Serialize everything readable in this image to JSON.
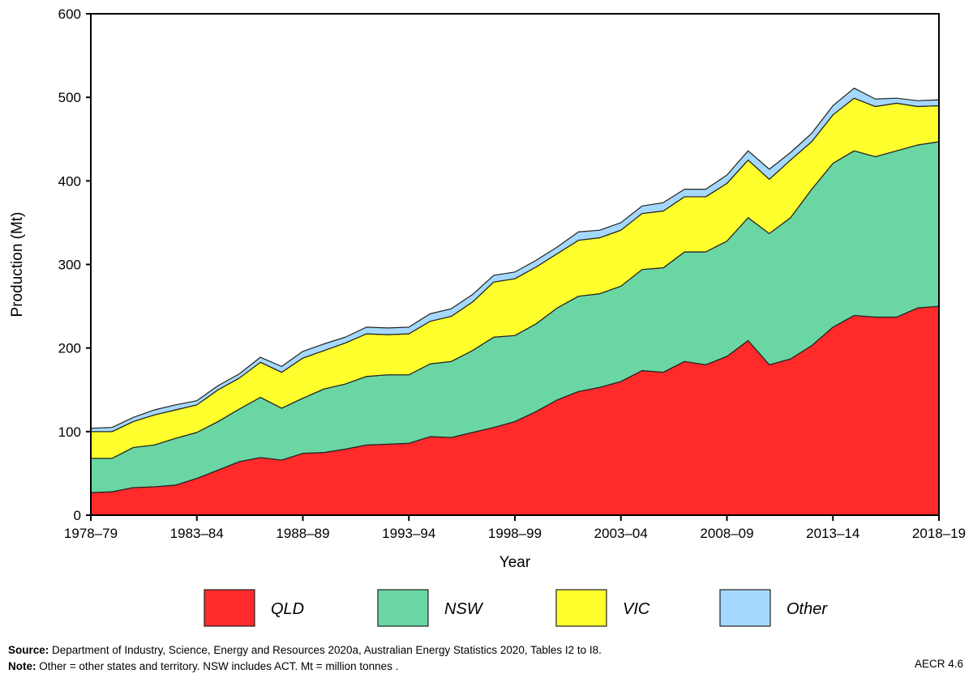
{
  "chart_data": {
    "type": "area",
    "stacked": true,
    "xlabel": "Year",
    "ylabel": "Production (Mt)",
    "ylim": [
      0,
      600
    ],
    "yticks": [
      0,
      100,
      200,
      300,
      400,
      500,
      600
    ],
    "x": [
      "1978–79",
      "1979–80",
      "1980–81",
      "1981–82",
      "1982–83",
      "1983–84",
      "1984–85",
      "1985–86",
      "1986–87",
      "1987–88",
      "1988–89",
      "1989–90",
      "1990–91",
      "1991–92",
      "1992–93",
      "1993–94",
      "1994–95",
      "1995–96",
      "1996–97",
      "1997–98",
      "1998–99",
      "1999–00",
      "2000–01",
      "2001–02",
      "2002–03",
      "2003–04",
      "2004–05",
      "2005–06",
      "2006–07",
      "2007–08",
      "2008–09",
      "2009–10",
      "2010–11",
      "2011–12",
      "2012–13",
      "2013–14",
      "2014–15",
      "2015–16",
      "2016–17",
      "2017–18",
      "2018–19"
    ],
    "xtick_labels": [
      "1978–79",
      "1983–84",
      "1988–89",
      "1993–94",
      "1998–99",
      "2003–04",
      "2008–09",
      "2013–14",
      "2018–19"
    ],
    "grid": false,
    "legend_placement": "bottom",
    "series": [
      {
        "name": "QLD",
        "color": "#ff2a2a",
        "values": [
          27,
          28,
          33,
          34,
          36,
          44,
          54,
          64,
          69,
          66,
          74,
          75,
          79,
          84,
          85,
          86,
          94,
          93,
          99,
          105,
          112,
          124,
          138,
          148,
          153,
          160,
          173,
          171,
          184,
          180,
          190,
          209,
          180,
          187,
          203,
          225,
          239,
          237,
          237,
          248,
          250
        ]
      },
      {
        "name": "NSW",
        "color": "#6ad6a4",
        "values": [
          41,
          40,
          48,
          50,
          56,
          55,
          58,
          63,
          72,
          62,
          66,
          76,
          78,
          82,
          83,
          82,
          87,
          91,
          98,
          108,
          103,
          105,
          110,
          114,
          112,
          114,
          121,
          125,
          131,
          135,
          138,
          147,
          157,
          169,
          187,
          196,
          197,
          192,
          199,
          195,
          197
        ]
      },
      {
        "name": "VIC",
        "color": "#ffff2e",
        "values": [
          32,
          32,
          31,
          36,
          34,
          33,
          38,
          37,
          42,
          43,
          48,
          46,
          49,
          51,
          48,
          49,
          51,
          54,
          58,
          66,
          68,
          68,
          65,
          67,
          67,
          67,
          67,
          68,
          66,
          66,
          69,
          69,
          65,
          69,
          57,
          58,
          63,
          60,
          57,
          46,
          43
        ]
      },
      {
        "name": "Other",
        "color": "#a5d8ff",
        "values": [
          4,
          5,
          5,
          6,
          6,
          5,
          5,
          5,
          6,
          7,
          8,
          8,
          7,
          8,
          8,
          8,
          9,
          9,
          9,
          8,
          8,
          8,
          8,
          10,
          9,
          9,
          9,
          10,
          9,
          9,
          10,
          11,
          12,
          9,
          10,
          11,
          12,
          9,
          6,
          7,
          7
        ]
      }
    ]
  },
  "footer": {
    "source_label": "Source:",
    "source_text": "Department of Industry, Science, Energy and Resources 2020a, Australian Energy Statistics 2020, Tables I2 to I8.",
    "note_label": "Note:",
    "note_text": "Other = other states and territory. NSW includes ACT. Mt = million tonnes  .",
    "figure_id": "AECR 4.6"
  }
}
